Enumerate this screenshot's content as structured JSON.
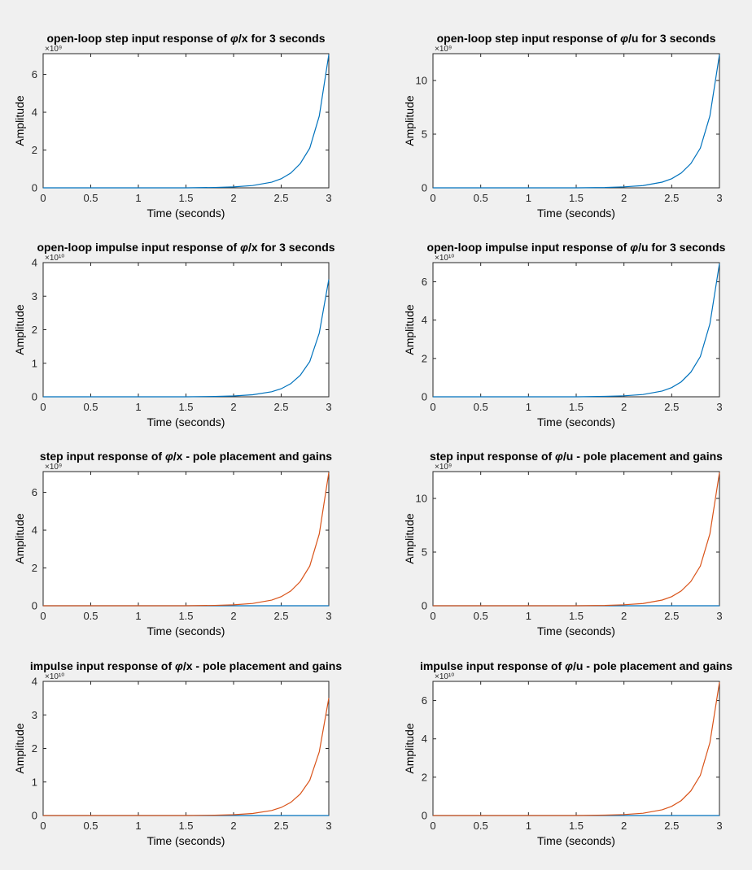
{
  "figure": {
    "background": "#f0f0f0"
  },
  "colors": {
    "blue": "#0072bd",
    "orange": "#d95319",
    "axes": "#262626"
  },
  "chart_data": [
    {
      "type": "line",
      "title_pre": "open-loop step input response of ",
      "title_sym": "φ",
      "title_post": "/x for 3 seconds",
      "xlabel": "Time (seconds)",
      "ylabel": "Amplitude",
      "exponent_label": "×10⁹",
      "xlim": [
        0,
        3
      ],
      "ylim": [
        0,
        7.1
      ],
      "xticks": [
        0,
        0.5,
        1,
        1.5,
        2,
        2.5,
        3
      ],
      "xtick_labels": [
        "0",
        "0.5",
        "1",
        "1.5",
        "2",
        "2.5",
        "3"
      ],
      "yticks": [
        0,
        2,
        4,
        6
      ],
      "ytick_labels": [
        "0",
        "2",
        "4",
        "6"
      ],
      "series": [
        {
          "color": "#0072bd",
          "x": [
            0,
            1.5,
            1.8,
            2.0,
            2.2,
            2.4,
            2.5,
            2.6,
            2.7,
            2.8,
            2.9,
            3.0
          ],
          "y": [
            0,
            0.0,
            0.02,
            0.05,
            0.12,
            0.3,
            0.48,
            0.78,
            1.28,
            2.1,
            3.8,
            7.05
          ]
        }
      ]
    },
    {
      "type": "line",
      "title_pre": "open-loop step input response of ",
      "title_sym": "φ",
      "title_post": "/u for 3 seconds",
      "xlabel": "Time (seconds)",
      "ylabel": "Amplitude",
      "exponent_label": "×10⁹",
      "xlim": [
        0,
        3
      ],
      "ylim": [
        0,
        12.5
      ],
      "xticks": [
        0,
        0.5,
        1,
        1.5,
        2,
        2.5,
        3
      ],
      "xtick_labels": [
        "0",
        "0.5",
        "1",
        "1.5",
        "2",
        "2.5",
        "3"
      ],
      "yticks": [
        0,
        5,
        10
      ],
      "ytick_labels": [
        "0",
        "5",
        "10"
      ],
      "series": [
        {
          "color": "#0072bd",
          "x": [
            0,
            1.5,
            1.8,
            2.0,
            2.2,
            2.4,
            2.5,
            2.6,
            2.7,
            2.8,
            2.9,
            3.0
          ],
          "y": [
            0,
            0.0,
            0.03,
            0.09,
            0.21,
            0.53,
            0.85,
            1.38,
            2.25,
            3.7,
            6.7,
            12.4
          ]
        }
      ]
    },
    {
      "type": "line",
      "title_pre": "open-loop impulse input response of ",
      "title_sym": "φ",
      "title_post": "/x for 3 seconds",
      "xlabel": "Time (seconds)",
      "ylabel": "Amplitude",
      "exponent_label": "×10¹⁰",
      "xlim": [
        0,
        3
      ],
      "ylim": [
        0,
        4
      ],
      "xticks": [
        0,
        0.5,
        1,
        1.5,
        2,
        2.5,
        3
      ],
      "xtick_labels": [
        "0",
        "0.5",
        "1",
        "1.5",
        "2",
        "2.5",
        "3"
      ],
      "yticks": [
        0,
        1,
        2,
        3,
        4
      ],
      "ytick_labels": [
        "0",
        "1",
        "2",
        "3",
        "4"
      ],
      "series": [
        {
          "color": "#0072bd",
          "x": [
            0,
            1.5,
            1.8,
            2.0,
            2.2,
            2.4,
            2.5,
            2.6,
            2.7,
            2.8,
            2.9,
            3.0
          ],
          "y": [
            0,
            0.0,
            0.01,
            0.025,
            0.06,
            0.15,
            0.24,
            0.39,
            0.64,
            1.05,
            1.9,
            3.5
          ]
        }
      ]
    },
    {
      "type": "line",
      "title_pre": "open-loop impulse input response of ",
      "title_sym": "φ",
      "title_post": "/u for 3 seconds",
      "xlabel": "Time (seconds)",
      "ylabel": "Amplitude",
      "exponent_label": "×10¹⁰",
      "xlim": [
        0,
        3
      ],
      "ylim": [
        0,
        7
      ],
      "xticks": [
        0,
        0.5,
        1,
        1.5,
        2,
        2.5,
        3
      ],
      "xtick_labels": [
        "0",
        "0.5",
        "1",
        "1.5",
        "2",
        "2.5",
        "3"
      ],
      "yticks": [
        0,
        2,
        4,
        6
      ],
      "ytick_labels": [
        "0",
        "2",
        "4",
        "6"
      ],
      "series": [
        {
          "color": "#0072bd",
          "x": [
            0,
            1.5,
            1.8,
            2.0,
            2.2,
            2.4,
            2.5,
            2.6,
            2.7,
            2.8,
            2.9,
            3.0
          ],
          "y": [
            0,
            0.0,
            0.02,
            0.05,
            0.12,
            0.3,
            0.48,
            0.78,
            1.28,
            2.1,
            3.8,
            6.95
          ]
        }
      ]
    },
    {
      "type": "line",
      "title_pre": "step input response of ",
      "title_sym": "φ",
      "title_post": "/x - pole placement and gains",
      "xlabel": "Time (seconds)",
      "ylabel": "Amplitude",
      "exponent_label": "×10⁹",
      "xlim": [
        0,
        3
      ],
      "ylim": [
        0,
        7.1
      ],
      "xticks": [
        0,
        0.5,
        1,
        1.5,
        2,
        2.5,
        3
      ],
      "xtick_labels": [
        "0",
        "0.5",
        "1",
        "1.5",
        "2",
        "2.5",
        "3"
      ],
      "yticks": [
        0,
        2,
        4,
        6
      ],
      "ytick_labels": [
        "0",
        "2",
        "4",
        "6"
      ],
      "series": [
        {
          "color": "#0072bd",
          "x": [
            0,
            3
          ],
          "y": [
            0,
            0
          ]
        },
        {
          "color": "#d95319",
          "x": [
            0,
            1.5,
            1.8,
            2.0,
            2.2,
            2.4,
            2.5,
            2.6,
            2.7,
            2.8,
            2.9,
            3.0
          ],
          "y": [
            0,
            0.0,
            0.02,
            0.05,
            0.12,
            0.3,
            0.48,
            0.78,
            1.28,
            2.1,
            3.8,
            7.05
          ]
        }
      ]
    },
    {
      "type": "line",
      "title_pre": "step input response of ",
      "title_sym": "φ",
      "title_post": "/u - pole placement and gains",
      "xlabel": "Time (seconds)",
      "ylabel": "Amplitude",
      "exponent_label": "×10⁹",
      "xlim": [
        0,
        3
      ],
      "ylim": [
        0,
        12.5
      ],
      "xticks": [
        0,
        0.5,
        1,
        1.5,
        2,
        2.5,
        3
      ],
      "xtick_labels": [
        "0",
        "0.5",
        "1",
        "1.5",
        "2",
        "2.5",
        "3"
      ],
      "yticks": [
        0,
        5,
        10
      ],
      "ytick_labels": [
        "0",
        "5",
        "10"
      ],
      "series": [
        {
          "color": "#0072bd",
          "x": [
            0,
            3
          ],
          "y": [
            0,
            0
          ]
        },
        {
          "color": "#d95319",
          "x": [
            0,
            1.5,
            1.8,
            2.0,
            2.2,
            2.4,
            2.5,
            2.6,
            2.7,
            2.8,
            2.9,
            3.0
          ],
          "y": [
            0,
            0.0,
            0.03,
            0.09,
            0.21,
            0.53,
            0.85,
            1.38,
            2.25,
            3.7,
            6.7,
            12.4
          ]
        }
      ]
    },
    {
      "type": "line",
      "title_pre": "impulse input response of ",
      "title_sym": "φ",
      "title_post": "/x - pole placement and gains",
      "xlabel": "Time (seconds)",
      "ylabel": "Amplitude",
      "exponent_label": "×10¹⁰",
      "xlim": [
        0,
        3
      ],
      "ylim": [
        0,
        4
      ],
      "xticks": [
        0,
        0.5,
        1,
        1.5,
        2,
        2.5,
        3
      ],
      "xtick_labels": [
        "0",
        "0.5",
        "1",
        "1.5",
        "2",
        "2.5",
        "3"
      ],
      "yticks": [
        0,
        1,
        2,
        3,
        4
      ],
      "ytick_labels": [
        "0",
        "1",
        "2",
        "3",
        "4"
      ],
      "series": [
        {
          "color": "#0072bd",
          "x": [
            0,
            3
          ],
          "y": [
            0,
            0
          ]
        },
        {
          "color": "#d95319",
          "x": [
            0,
            1.5,
            1.8,
            2.0,
            2.2,
            2.4,
            2.5,
            2.6,
            2.7,
            2.8,
            2.9,
            3.0
          ],
          "y": [
            0,
            0.0,
            0.01,
            0.025,
            0.06,
            0.15,
            0.24,
            0.39,
            0.64,
            1.05,
            1.9,
            3.5
          ]
        }
      ]
    },
    {
      "type": "line",
      "title_pre": "impulse input response of ",
      "title_sym": "φ",
      "title_post": "/u - pole placement and gains",
      "xlabel": "Time (seconds)",
      "ylabel": "Amplitude",
      "exponent_label": "×10¹⁰",
      "xlim": [
        0,
        3
      ],
      "ylim": [
        0,
        7
      ],
      "xticks": [
        0,
        0.5,
        1,
        1.5,
        2,
        2.5,
        3
      ],
      "xtick_labels": [
        "0",
        "0.5",
        "1",
        "1.5",
        "2",
        "2.5",
        "3"
      ],
      "yticks": [
        0,
        2,
        4,
        6
      ],
      "ytick_labels": [
        "0",
        "2",
        "4",
        "6"
      ],
      "series": [
        {
          "color": "#0072bd",
          "x": [
            0,
            3
          ],
          "y": [
            0,
            0
          ]
        },
        {
          "color": "#d95319",
          "x": [
            0,
            1.5,
            1.8,
            2.0,
            2.2,
            2.4,
            2.5,
            2.6,
            2.7,
            2.8,
            2.9,
            3.0
          ],
          "y": [
            0,
            0.0,
            0.02,
            0.05,
            0.12,
            0.3,
            0.48,
            0.78,
            1.28,
            2.1,
            3.8,
            6.95
          ]
        }
      ]
    }
  ]
}
